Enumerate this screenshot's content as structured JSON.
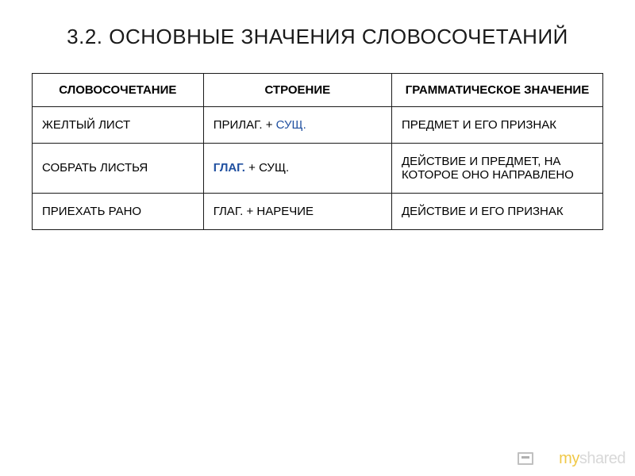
{
  "title": "3.2. ОСНОВНЫЕ ЗНАЧЕНИЯ СЛОВОСОЧЕТАНИЙ",
  "table": {
    "headers": [
      "СЛОВОСОЧЕТАНИЕ",
      "СТРОЕНИЕ",
      "ГРАММАТИЧЕСКОЕ ЗНАЧЕНИЕ"
    ],
    "rows": [
      {
        "phrase": "ЖЕЛТЫЙ ЛИСТ",
        "structure_pre": "ПРИЛАГ. + ",
        "structure_hl": "СУЩ.",
        "structure_post": "",
        "hl_bold": false,
        "meaning": "ПРЕДМЕТ И ЕГО ПРИЗНАК"
      },
      {
        "phrase": "СОБРАТЬ ЛИСТЬЯ",
        "structure_pre": "",
        "structure_hl": "ГЛАГ.",
        "structure_post": " + СУЩ.",
        "hl_bold": true,
        "meaning": "ДЕЙСТВИЕ И ПРЕДМЕТ, НА КОТОРОЕ ОНО НАПРАВЛЕНО"
      },
      {
        "phrase": "ПРИЕХАТЬ РАНО",
        "structure_pre": "ГЛАГ. + НАРЕЧИЕ",
        "structure_hl": "",
        "structure_post": "",
        "hl_bold": false,
        "meaning": "ДЕЙСТВИЕ И ЕГО ПРИЗНАК"
      }
    ]
  },
  "logo": {
    "my": "my",
    "shared": "shared"
  }
}
